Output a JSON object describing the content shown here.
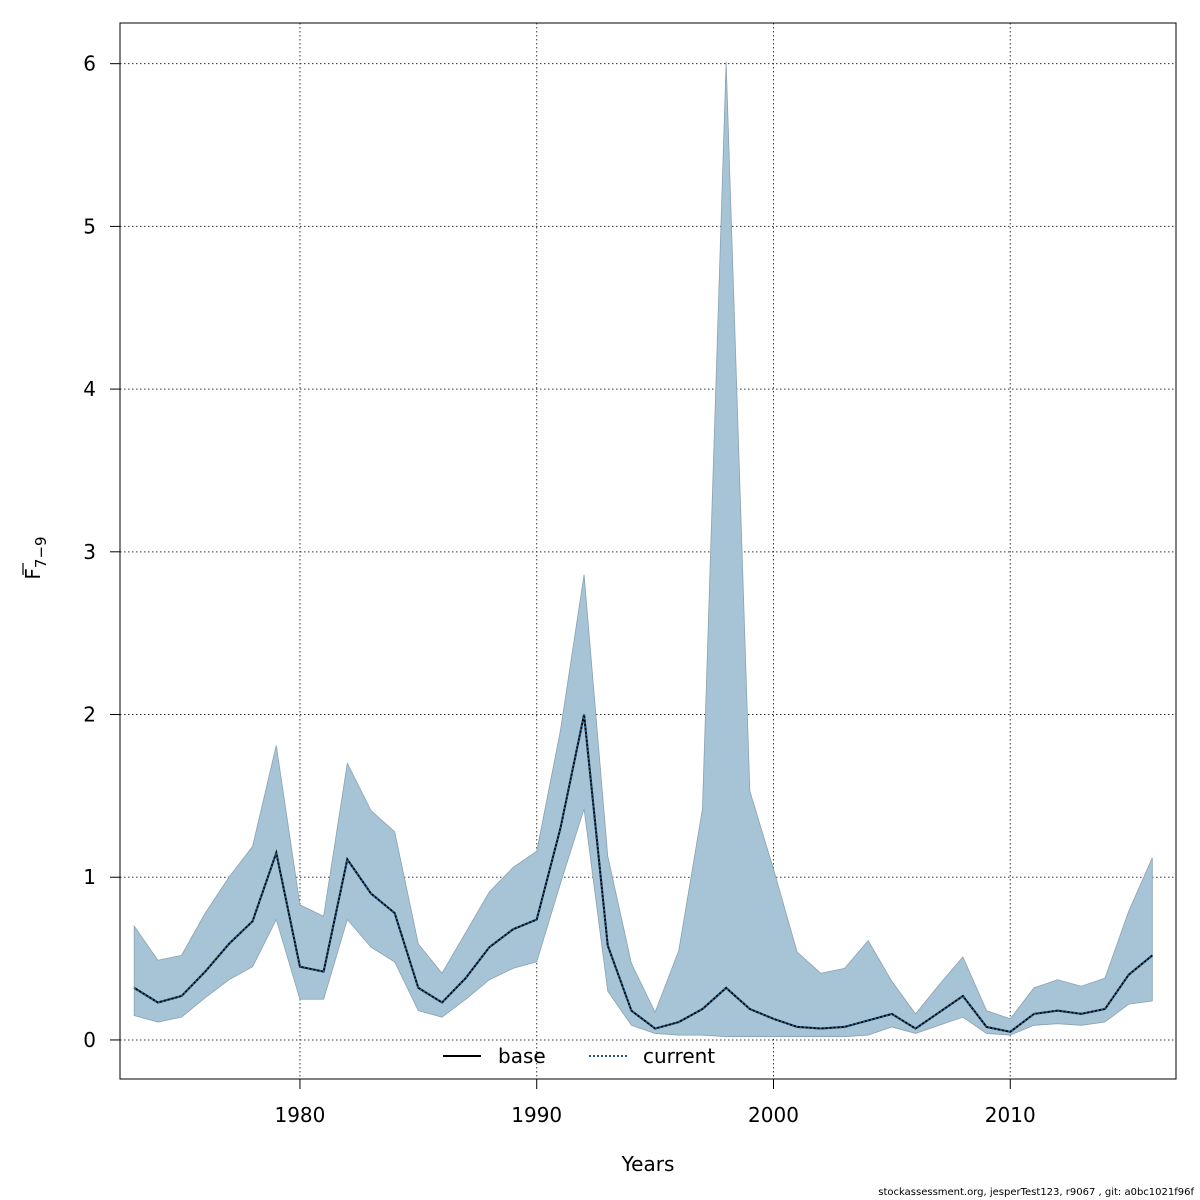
{
  "chart_data": {
    "type": "area",
    "xlabel": "Years",
    "ylabel_base": "F",
    "ylabel_subscript": "7−9",
    "xlim": [
      1972.4,
      2017
    ],
    "ylim": [
      -0.24,
      6.25
    ],
    "x_ticks": [
      1980,
      1990,
      2000,
      2010
    ],
    "y_ticks": [
      0,
      1,
      2,
      3,
      4,
      5,
      6
    ],
    "x_tick_labels": [
      "1980",
      "1990",
      "2000",
      "2010"
    ],
    "y_tick_labels": [
      "0",
      "1",
      "2",
      "3",
      "4",
      "5",
      "6"
    ],
    "grid": true,
    "legend_position": "bottom-center",
    "x": [
      1973,
      1974,
      1975,
      1976,
      1977,
      1978,
      1979,
      1980,
      1981,
      1982,
      1983,
      1984,
      1985,
      1986,
      1987,
      1988,
      1989,
      1990,
      1991,
      1992,
      1993,
      1994,
      1995,
      1996,
      1997,
      1998,
      1999,
      2000,
      2001,
      2002,
      2003,
      2004,
      2005,
      2006,
      2007,
      2008,
      2009,
      2010,
      2011,
      2012,
      2013,
      2014,
      2015,
      2016
    ],
    "series": [
      {
        "name": "base",
        "line_style": "solid",
        "color": "#000000",
        "values": [
          0.32,
          0.23,
          0.27,
          0.42,
          0.59,
          0.73,
          1.15,
          0.45,
          0.42,
          1.11,
          0.9,
          0.78,
          0.32,
          0.23,
          0.38,
          0.57,
          0.68,
          0.74,
          1.3,
          2.0,
          0.58,
          0.18,
          0.07,
          0.11,
          0.19,
          0.32,
          0.19,
          0.13,
          0.08,
          0.07,
          0.08,
          0.12,
          0.16,
          0.07,
          0.17,
          0.27,
          0.08,
          0.05,
          0.16,
          0.18,
          0.16,
          0.19,
          0.4,
          0.52
        ]
      },
      {
        "name": "current",
        "line_style": "dotted",
        "color": "#1f5a8a",
        "values": [
          0.32,
          0.23,
          0.27,
          0.42,
          0.59,
          0.73,
          1.15,
          0.45,
          0.42,
          1.11,
          0.9,
          0.78,
          0.32,
          0.23,
          0.38,
          0.57,
          0.68,
          0.74,
          1.3,
          2.0,
          0.58,
          0.18,
          0.07,
          0.11,
          0.19,
          0.32,
          0.19,
          0.13,
          0.08,
          0.07,
          0.08,
          0.12,
          0.16,
          0.07,
          0.17,
          0.27,
          0.08,
          0.05,
          0.16,
          0.18,
          0.16,
          0.19,
          0.4,
          0.52
        ]
      }
    ],
    "band": {
      "color": "#a6c4d6",
      "lower": [
        0.15,
        0.11,
        0.14,
        0.26,
        0.37,
        0.45,
        0.74,
        0.25,
        0.25,
        0.74,
        0.57,
        0.48,
        0.18,
        0.14,
        0.25,
        0.37,
        0.44,
        0.48,
        0.96,
        1.42,
        0.3,
        0.09,
        0.04,
        0.03,
        0.03,
        0.02,
        0.02,
        0.02,
        0.02,
        0.02,
        0.02,
        0.03,
        0.08,
        0.04,
        0.09,
        0.14,
        0.04,
        0.03,
        0.09,
        0.1,
        0.09,
        0.11,
        0.22,
        0.24
      ],
      "upper": [
        0.7,
        0.49,
        0.52,
        0.78,
        1.0,
        1.19,
        1.81,
        0.83,
        0.76,
        1.7,
        1.41,
        1.28,
        0.59,
        0.41,
        0.66,
        0.91,
        1.06,
        1.16,
        1.9,
        2.86,
        1.13,
        0.47,
        0.17,
        0.55,
        1.42,
        6.01,
        1.53,
        1.05,
        0.54,
        0.41,
        0.44,
        0.61,
        0.36,
        0.16,
        0.34,
        0.51,
        0.18,
        0.13,
        0.32,
        0.37,
        0.33,
        0.38,
        0.79,
        1.12
      ]
    }
  },
  "footer": {
    "text": "stockassessment.org, jesperTest123, r9067 , git: a0bc1021f96f"
  }
}
